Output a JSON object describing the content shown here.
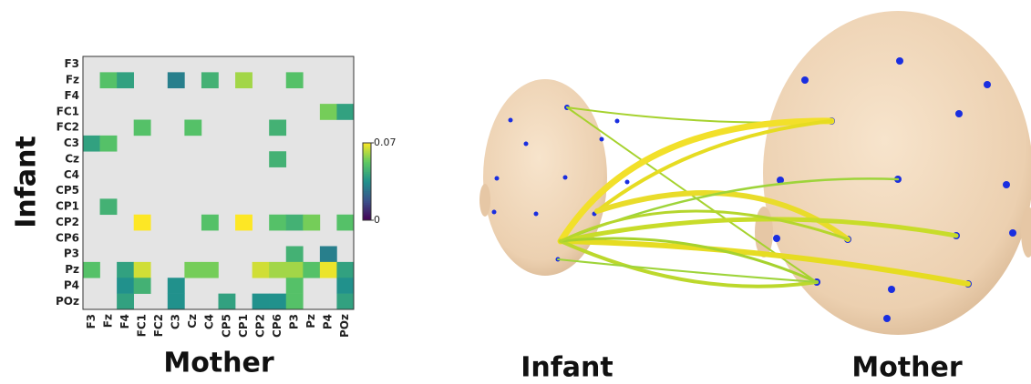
{
  "chart_data": {
    "type": "heatmap",
    "ylabel": "Infant",
    "xlabel": "Mother",
    "rows": [
      "F3",
      "Fz",
      "F4",
      "FC1",
      "FC2",
      "C3",
      "Cz",
      "C4",
      "CP5",
      "CP1",
      "CP2",
      "CP6",
      "P3",
      "Pz",
      "P4",
      "POz"
    ],
    "columns": [
      "F3",
      "Fz",
      "F4",
      "FC1",
      "FC2",
      "C3",
      "Cz",
      "C4",
      "CP5",
      "CP1",
      "CP2",
      "CP6",
      "P3",
      "Pz",
      "P4",
      "POz"
    ],
    "values": [
      [
        null,
        null,
        null,
        null,
        null,
        null,
        null,
        null,
        null,
        null,
        null,
        null,
        null,
        null,
        null,
        null
      ],
      [
        null,
        0.05,
        0.04,
        null,
        null,
        0.03,
        null,
        0.045,
        null,
        0.06,
        null,
        null,
        0.05,
        null,
        null,
        null
      ],
      [
        null,
        null,
        null,
        null,
        null,
        null,
        null,
        null,
        null,
        null,
        null,
        null,
        null,
        null,
        null,
        null
      ],
      [
        null,
        null,
        null,
        null,
        null,
        null,
        null,
        null,
        null,
        null,
        null,
        null,
        null,
        null,
        0.055,
        0.04
      ],
      [
        null,
        null,
        null,
        0.05,
        null,
        null,
        0.05,
        null,
        null,
        null,
        null,
        0.045,
        null,
        null,
        null,
        null
      ],
      [
        0.04,
        0.05,
        null,
        null,
        null,
        null,
        null,
        null,
        null,
        null,
        null,
        null,
        null,
        null,
        null,
        null
      ],
      [
        null,
        null,
        null,
        null,
        null,
        null,
        null,
        null,
        null,
        null,
        null,
        0.045,
        null,
        null,
        null,
        null
      ],
      [
        null,
        null,
        null,
        null,
        null,
        null,
        null,
        null,
        null,
        null,
        null,
        null,
        null,
        null,
        null,
        null
      ],
      [
        null,
        null,
        null,
        null,
        null,
        null,
        null,
        null,
        null,
        null,
        null,
        null,
        null,
        null,
        null,
        null
      ],
      [
        null,
        0.045,
        null,
        null,
        null,
        null,
        null,
        null,
        null,
        null,
        null,
        null,
        null,
        null,
        null,
        null
      ],
      [
        null,
        null,
        null,
        0.07,
        null,
        null,
        null,
        0.05,
        null,
        0.07,
        null,
        0.05,
        0.045,
        0.055,
        null,
        0.05
      ],
      [
        null,
        null,
        null,
        null,
        null,
        null,
        null,
        null,
        null,
        null,
        null,
        null,
        null,
        null,
        null,
        null
      ],
      [
        null,
        null,
        null,
        null,
        null,
        null,
        null,
        null,
        null,
        null,
        null,
        null,
        0.045,
        null,
        0.03,
        null
      ],
      [
        0.05,
        null,
        0.04,
        0.065,
        null,
        null,
        0.055,
        0.055,
        null,
        null,
        0.065,
        0.06,
        0.06,
        0.05,
        0.068,
        0.04
      ],
      [
        null,
        null,
        0.035,
        0.045,
        null,
        0.035,
        null,
        null,
        null,
        null,
        null,
        null,
        0.05,
        null,
        null,
        0.035
      ],
      [
        null,
        null,
        0.04,
        null,
        null,
        0.035,
        null,
        null,
        0.04,
        null,
        0.035,
        0.035,
        0.05,
        null,
        null,
        0.04
      ]
    ],
    "zlim": [
      0,
      0.07
    ],
    "zticks": [
      0,
      0.07
    ],
    "colormap": [
      "#440154",
      "#3b528b",
      "#21918c",
      "#5ec962",
      "#fde725"
    ],
    "missing_color": "#e4e4e4"
  },
  "illustration": {
    "labels": [
      "Infant",
      "Mother"
    ]
  }
}
